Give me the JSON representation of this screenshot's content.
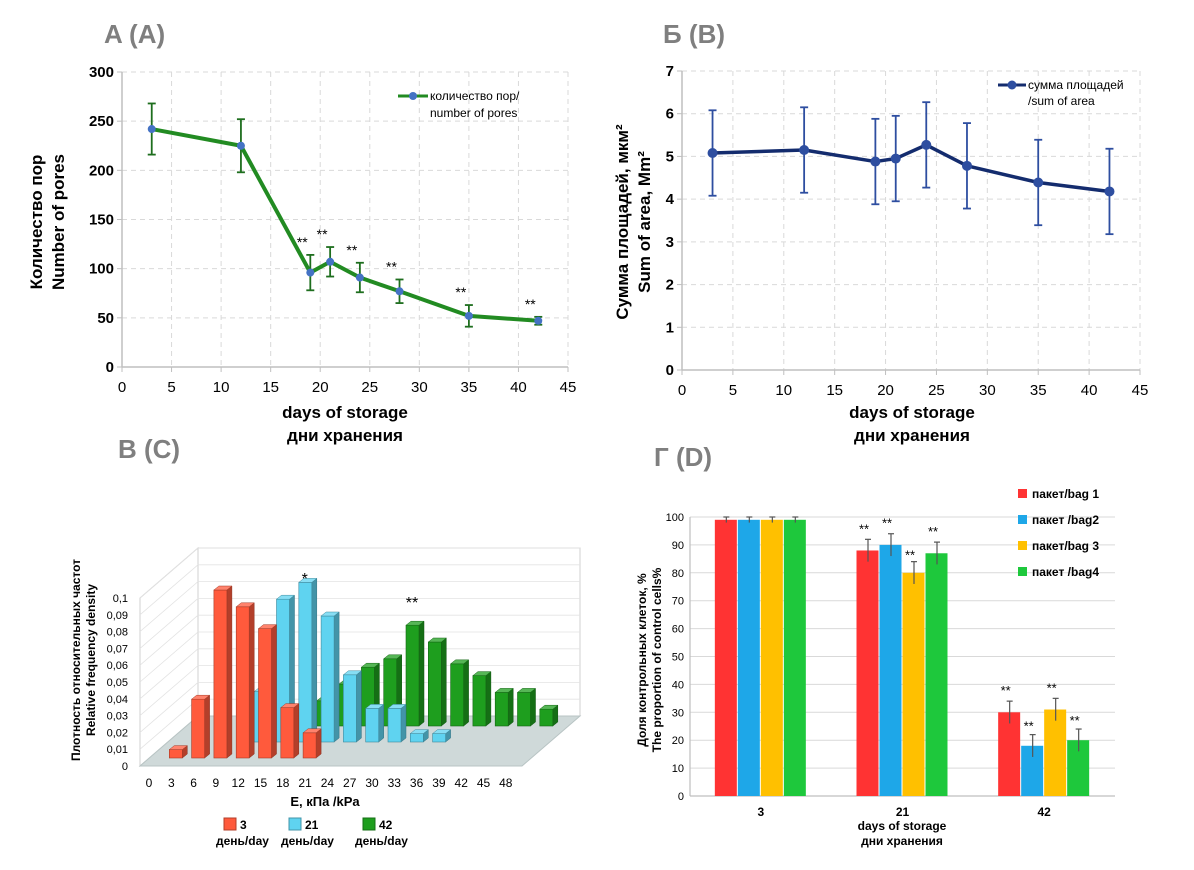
{
  "chart_data": [
    {
      "panel": "A (A)",
      "type": "line",
      "title": "",
      "xlabel": [
        "days of storage",
        "дни хранения"
      ],
      "ylabel": [
        "Количество пор",
        "Number of pores"
      ],
      "xlim": [
        0,
        45
      ],
      "ylim": [
        0,
        300
      ],
      "xticks": [
        0,
        5,
        10,
        15,
        20,
        25,
        30,
        35,
        40,
        45
      ],
      "yticks": [
        0,
        50,
        100,
        150,
        200,
        250,
        300
      ],
      "grid": true,
      "legend_position": "top-right",
      "color": "#228b22",
      "series": [
        {
          "name": "количество пор/ number of pores",
          "x": [
            3,
            12,
            19,
            21,
            24,
            28,
            35,
            42
          ],
          "y": [
            242,
            225,
            96,
            107,
            91,
            77,
            52,
            47
          ],
          "err": [
            26,
            27,
            18,
            15,
            15,
            12,
            11,
            4
          ],
          "annotations": [
            "",
            "",
            "**",
            "**",
            "**",
            "**",
            "**",
            "**"
          ]
        }
      ]
    },
    {
      "panel": "Б (B)",
      "type": "line",
      "title": "",
      "xlabel": [
        "days of storage",
        "дни хранения"
      ],
      "ylabel": [
        "Сумма площадей, мкм²",
        "Sum of area, Mm²"
      ],
      "xlim": [
        0,
        45
      ],
      "ylim": [
        0,
        7
      ],
      "xticks": [
        0,
        5,
        10,
        15,
        20,
        25,
        30,
        35,
        40,
        45
      ],
      "yticks": [
        0,
        1,
        2,
        3,
        4,
        5,
        6,
        7
      ],
      "grid": true,
      "legend_position": "top-right",
      "color": "#142c6e",
      "series": [
        {
          "name": "сумма площадей /sum of area",
          "x": [
            3,
            12,
            19,
            21,
            24,
            28,
            35,
            42
          ],
          "y": [
            5.08,
            5.15,
            4.88,
            4.95,
            5.27,
            4.78,
            4.39,
            4.18
          ],
          "err": [
            1.0,
            1.0,
            1.0,
            1.0,
            1.0,
            1.0,
            1.0,
            1.0
          ]
        }
      ]
    },
    {
      "panel": "В (C)",
      "type": "bar",
      "style": "3d",
      "title": "",
      "xlabel": "E, кПа /kPa",
      "ylabel": [
        "Плотность относительных частот",
        "Relative frequency density"
      ],
      "ylim": [
        0,
        0.1
      ],
      "yticks": [
        "0",
        "0,01",
        "0,02",
        "0,03",
        "0,04",
        "0,05",
        "0,06",
        "0,07",
        "0,08",
        "0,09",
        "0,1"
      ],
      "categories": [
        "0",
        "3",
        "6",
        "9",
        "12",
        "15",
        "18",
        "21",
        "24",
        "27",
        "30",
        "33",
        "36",
        "39",
        "42",
        "45",
        "48"
      ],
      "legend_position": "bottom",
      "series": [
        {
          "name_top": "3",
          "name_bottom": "день/day",
          "color": "#ff5a3c",
          "values": [
            0,
            0.005,
            0.035,
            0.1,
            0.09,
            0.077,
            0.03,
            0.015,
            0,
            0,
            0,
            0,
            0,
            0,
            0,
            0,
            0
          ]
        },
        {
          "name_top": "21",
          "name_bottom": "день/day",
          "color": "#5fd3f0",
          "values": [
            0,
            0,
            0,
            0,
            0.03,
            0.085,
            0.095,
            0.075,
            0.04,
            0.02,
            0.02,
            0.005,
            0.005,
            0,
            0,
            0,
            0
          ]
        },
        {
          "name_top": "42",
          "name_bottom": "день/day",
          "color": "#1e9e1e",
          "values": [
            0,
            0,
            0,
            0,
            0,
            0,
            0.015,
            0.025,
            0.035,
            0.04,
            0.06,
            0.05,
            0.037,
            0.03,
            0.02,
            0.02,
            0.01
          ]
        }
      ],
      "annotations": [
        {
          "text": "*",
          "category": "18"
        },
        {
          "text": "**",
          "category": "30"
        }
      ]
    },
    {
      "panel": "Г (D)",
      "type": "bar",
      "title": "",
      "xlabel": [
        "days of storage",
        "дни хранения"
      ],
      "ylabel": [
        "Доля контрольных клеток, %",
        "The proportion of control cells%"
      ],
      "ylim": [
        0,
        100
      ],
      "yticks": [
        0,
        10,
        20,
        30,
        40,
        50,
        60,
        70,
        80,
        90,
        100
      ],
      "categories": [
        "3",
        "21",
        "42"
      ],
      "legend_position": "top-right",
      "series": [
        {
          "name": "пакет/bag 1",
          "color": "#ff3333",
          "values": [
            99,
            88,
            30
          ],
          "err": [
            1,
            4,
            4
          ],
          "annotations": [
            "",
            "**",
            "**"
          ]
        },
        {
          "name": "пакет /bag2",
          "color": "#1ea7e8",
          "values": [
            99,
            90,
            18
          ],
          "err": [
            1,
            4,
            4
          ],
          "annotations": [
            "",
            "**",
            "**"
          ]
        },
        {
          "name": "пакет/bag 3",
          "color": "#ffc000",
          "values": [
            99,
            80,
            31
          ],
          "err": [
            1,
            4,
            4
          ],
          "annotations": [
            "",
            "**",
            "**"
          ]
        },
        {
          "name": "пакет /bag4",
          "color": "#1ec83c",
          "values": [
            99,
            87,
            20
          ],
          "err": [
            1,
            4,
            4
          ],
          "annotations": [
            "",
            "**",
            "**"
          ]
        }
      ]
    }
  ]
}
